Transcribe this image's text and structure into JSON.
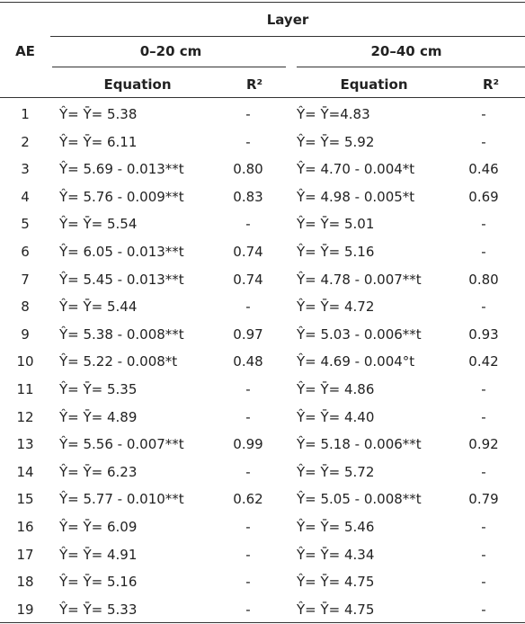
{
  "table": {
    "header": {
      "group": "Layer",
      "ae": "AE",
      "layers": [
        "0–20 cm",
        "20–40 cm"
      ],
      "columns": [
        "Equation",
        "R²",
        "Equation",
        "R²"
      ]
    },
    "rows": [
      [
        "1",
        "Ŷ= Ȳ= 5.38",
        "-",
        "Ŷ= Ȳ=4.83",
        "-"
      ],
      [
        "2",
        "Ŷ= Ȳ= 6.11",
        "-",
        "Ŷ= Ȳ= 5.92",
        "-"
      ],
      [
        "3",
        "Ŷ= 5.69 - 0.013**t",
        "0.80",
        "Ŷ= 4.70 - 0.004*t",
        "0.46"
      ],
      [
        "4",
        "Ŷ= 5.76 - 0.009**t",
        "0.83",
        "Ŷ= 4.98 - 0.005*t",
        "0.69"
      ],
      [
        "5",
        "Ŷ= Ȳ= 5.54",
        "-",
        "Ŷ= Ȳ= 5.01",
        "-"
      ],
      [
        "6",
        "Ŷ= 6.05 - 0.013**t",
        "0.74",
        "Ŷ= Ȳ= 5.16",
        "-"
      ],
      [
        "7",
        "Ŷ= 5.45 - 0.013**t",
        "0.74",
        "Ŷ= 4.78 - 0.007**t",
        "0.80"
      ],
      [
        "8",
        "Ŷ= Ȳ= 5.44",
        "-",
        "Ŷ= Ȳ= 4.72",
        "-"
      ],
      [
        "9",
        "Ŷ= 5.38 - 0.008**t",
        "0.97",
        "Ŷ= 5.03 - 0.006**t",
        "0.93"
      ],
      [
        "10",
        "Ŷ= 5.22 - 0.008*t",
        "0.48",
        "Ŷ= 4.69 - 0.004°t",
        "0.42"
      ],
      [
        "11",
        "Ŷ= Ȳ= 5.35",
        "-",
        "Ŷ= Ȳ= 4.86",
        "-"
      ],
      [
        "12",
        "Ŷ= Ȳ= 4.89",
        "-",
        "Ŷ= Ȳ= 4.40",
        "-"
      ],
      [
        "13",
        "Ŷ= 5.56 - 0.007**t",
        "0.99",
        "Ŷ= 5.18 - 0.006**t",
        "0.92"
      ],
      [
        "14",
        "Ŷ= Ȳ= 6.23",
        "-",
        "Ŷ= Ȳ= 5.72",
        "-"
      ],
      [
        "15",
        "Ŷ= 5.77 - 0.010**t",
        "0.62",
        "Ŷ= 5.05 - 0.008**t",
        "0.79"
      ],
      [
        "16",
        "Ŷ= Ȳ= 6.09",
        "-",
        "Ŷ= Ȳ= 5.46",
        "-"
      ],
      [
        "17",
        "Ŷ= Ȳ= 4.91",
        "-",
        "Ŷ= Ȳ= 4.34",
        "-"
      ],
      [
        "18",
        "Ŷ= Ȳ= 5.16",
        "-",
        "Ŷ= Ȳ= 4.75",
        "-"
      ],
      [
        "19",
        "Ŷ= Ȳ= 5.33",
        "-",
        "Ŷ= Ȳ= 4.75",
        "-"
      ]
    ]
  }
}
